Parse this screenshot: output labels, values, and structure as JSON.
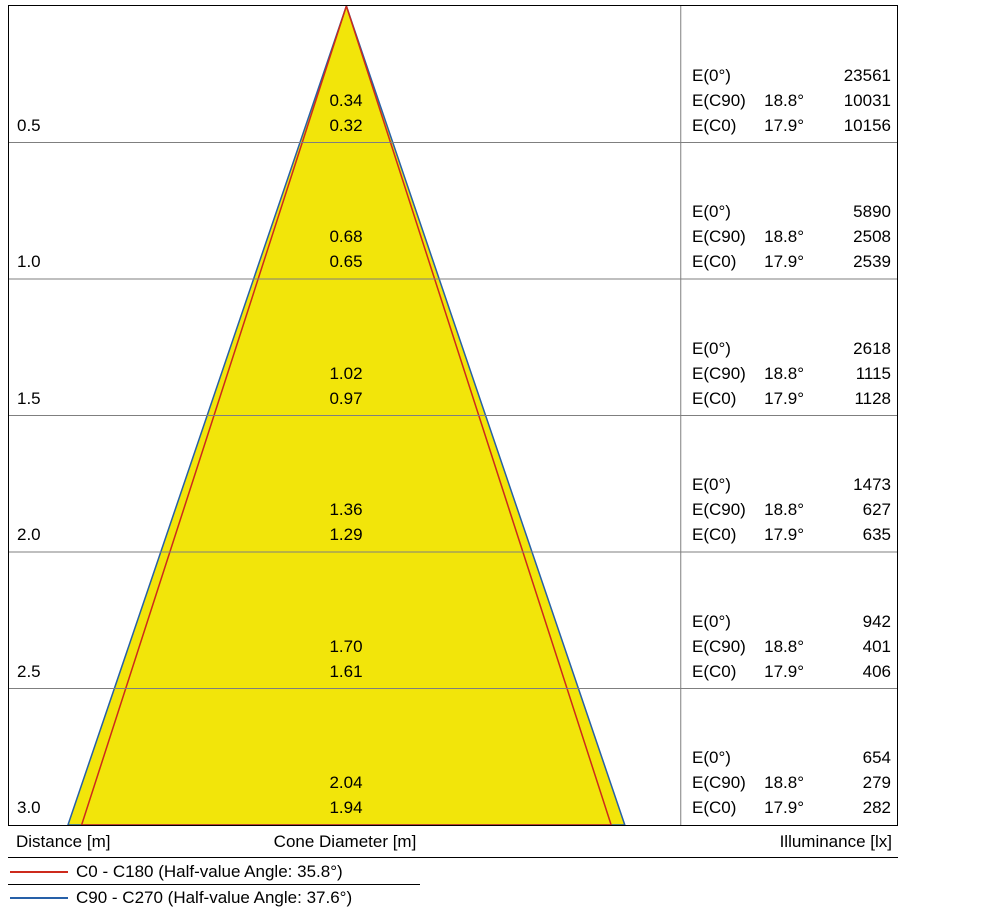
{
  "colors": {
    "cone_fill": "#f2e50a",
    "c0_line": "#cd2a1c",
    "c90_line": "#2660a8",
    "grid": "#7f7f7f",
    "border": "#000000"
  },
  "labels": {
    "e0": "E(0°)",
    "ec90": "E(C90)",
    "ec0": "E(C0)",
    "ec90_angle": "18.8°",
    "ec0_angle": "17.9°"
  },
  "rows": [
    {
      "distance": "0.5",
      "dia_c90": "0.34",
      "dia_c0": "0.32",
      "e0": "23561",
      "ec90": "10031",
      "ec0": "10156"
    },
    {
      "distance": "1.0",
      "dia_c90": "0.68",
      "dia_c0": "0.65",
      "e0": "5890",
      "ec90": "2508",
      "ec0": "2539"
    },
    {
      "distance": "1.5",
      "dia_c90": "1.02",
      "dia_c0": "0.97",
      "e0": "2618",
      "ec90": "1115",
      "ec0": "1128"
    },
    {
      "distance": "2.0",
      "dia_c90": "1.36",
      "dia_c0": "1.29",
      "e0": "1473",
      "ec90": "627",
      "ec0": "635"
    },
    {
      "distance": "2.5",
      "dia_c90": "1.70",
      "dia_c0": "1.61",
      "e0": "942",
      "ec90": "401",
      "ec0": "406"
    },
    {
      "distance": "3.0",
      "dia_c90": "2.04",
      "dia_c0": "1.94",
      "e0": "654",
      "ec90": "279",
      "ec0": "282"
    }
  ],
  "footer": {
    "distance_label": "Distance [m]",
    "cone_label": "Cone Diameter [m]",
    "illuminance_label": "Illuminance [lx]"
  },
  "legend": [
    {
      "color": "#cd2a1c",
      "label": "C0 - C180 (Half-value Angle: 35.8°)"
    },
    {
      "color": "#2660a8",
      "label": "C90 - C270 (Half-value Angle: 37.6°)"
    }
  ],
  "chart_data": {
    "type": "table",
    "columns": [
      "Distance [m]",
      "Cone Diameter C90-C270 [m]",
      "Cone Diameter C0-C180 [m]",
      "E(0°) [lx]",
      "E(C90) [lx]",
      "E(C0) [lx]"
    ],
    "rows": [
      [
        0.5,
        0.34,
        0.32,
        23561,
        10031,
        10156
      ],
      [
        1.0,
        0.68,
        0.65,
        5890,
        2508,
        2539
      ],
      [
        1.5,
        1.02,
        0.97,
        2618,
        1115,
        1128
      ],
      [
        2.0,
        1.36,
        1.29,
        1473,
        627,
        635
      ],
      [
        2.5,
        1.7,
        1.61,
        942,
        401,
        406
      ],
      [
        3.0,
        2.04,
        1.94,
        654,
        279,
        282
      ]
    ],
    "half_value_angles": {
      "C0-C180": 35.8,
      "C90-C270": 37.6
    },
    "beam_angles": {
      "E(C90)": 18.8,
      "E(C0)": 17.9
    },
    "legend_position": "bottom-left",
    "grid": true
  }
}
